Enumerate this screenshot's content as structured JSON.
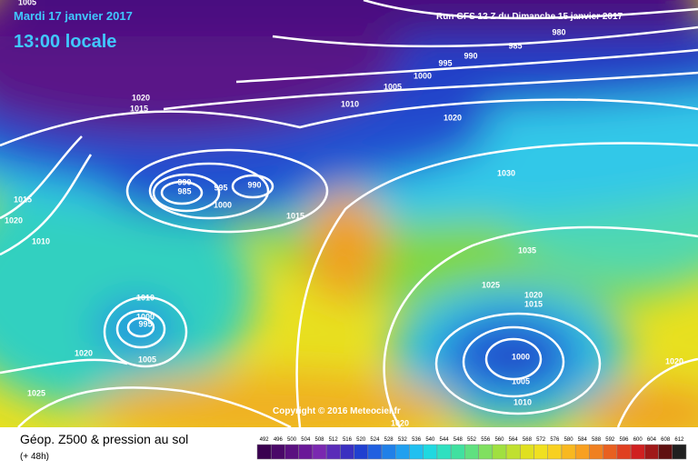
{
  "header": {
    "date": "Mardi 17 janvier 2017",
    "time": "13:00 locale",
    "run": "Run GFS 12 Z du Dimanche 15 janvier 2017"
  },
  "isobar_labels": [
    "1005",
    "980",
    "985",
    "990",
    "995",
    "1000",
    "1005",
    "1010",
    "1020",
    "1020",
    "1015",
    "1015",
    "1020",
    "1010",
    "990",
    "985",
    "995",
    "990",
    "1000",
    "1015",
    "1030",
    "1035",
    "1025",
    "1020",
    "1015",
    "1010",
    "1000",
    "995",
    "1005",
    "1020",
    "1025",
    "1000",
    "1005",
    "1010",
    "1020",
    "1020"
  ],
  "copyright": "Copyright © 2016 Meteociel.fr",
  "footer": {
    "title": "Géop. Z500 & pression au sol",
    "lead": "(+ 48h)"
  },
  "legend": {
    "labels": [
      "492",
      "496",
      "500",
      "504",
      "508",
      "512",
      "516",
      "520",
      "524",
      "528",
      "532",
      "536",
      "540",
      "544",
      "548",
      "552",
      "556",
      "560",
      "564",
      "568",
      "572",
      "576",
      "580",
      "584",
      "588",
      "592",
      "596",
      "600",
      "604",
      "608",
      "612"
    ],
    "colors": [
      "#3a0050",
      "#4a0868",
      "#5a1080",
      "#6a1898",
      "#7a28b0",
      "#5a2cb8",
      "#3a30c0",
      "#2040d0",
      "#2060e0",
      "#2080e8",
      "#20a0f0",
      "#20c0f0",
      "#20d8e0",
      "#30e0c0",
      "#40e0a0",
      "#60e080",
      "#80e060",
      "#a0e040",
      "#c0e030",
      "#e0e020",
      "#f0e020",
      "#f8d020",
      "#f8b820",
      "#f8a020",
      "#f08020",
      "#e86020",
      "#e04020",
      "#d02020",
      "#a01818",
      "#601010",
      "#202020"
    ]
  }
}
